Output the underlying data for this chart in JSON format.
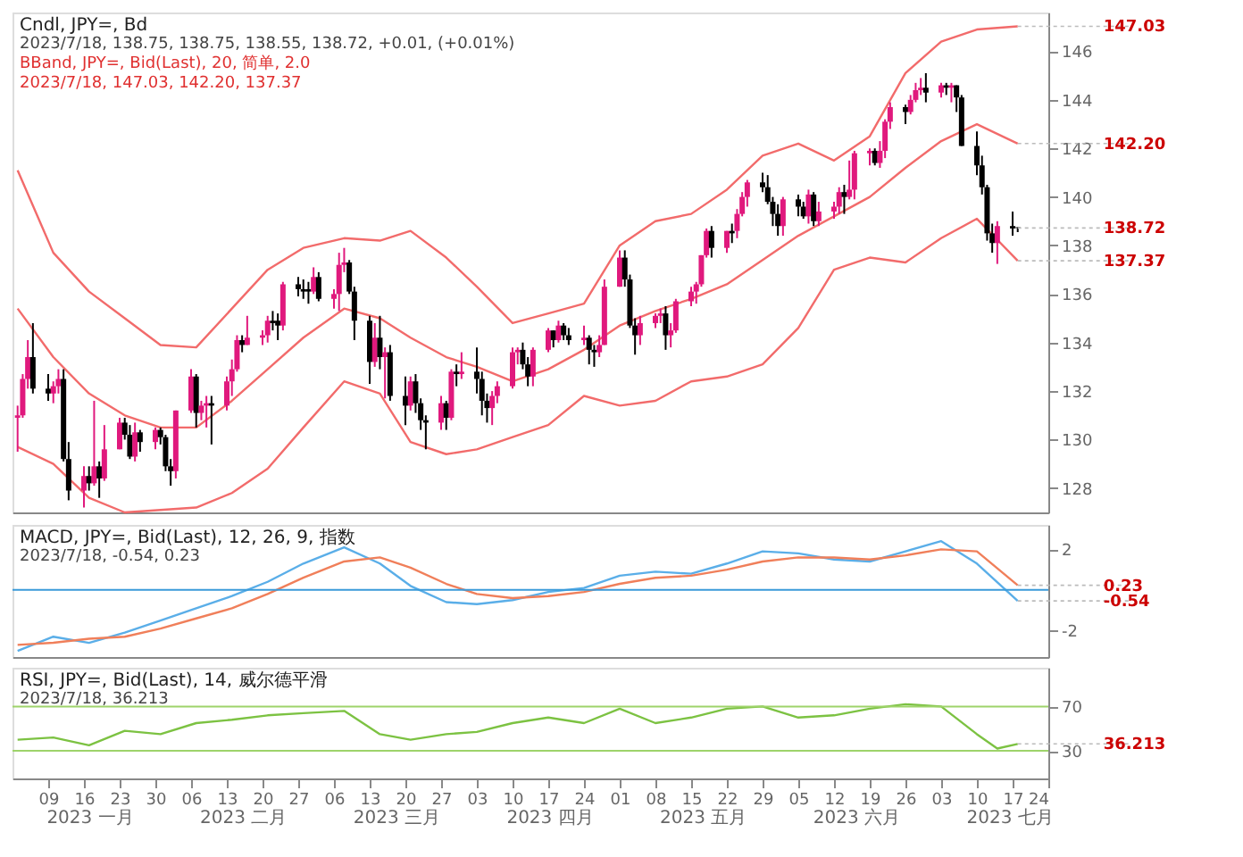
{
  "chart_data": [
    {
      "type": "candlestick",
      "title": "Cndl, JPY=, Bd",
      "subtitle": "2023/7/18, 138.75, 138.75, 138.55, 138.72, +0.01, (+0.01%)",
      "annotations": [
        "BBand, JPY=, Bid(Last), 20, 简单, 2.0",
        "2023/7/18, 147.03, 142.20, 137.37",
        {
          "text": "147.03",
          "x": "2023-07-18",
          "y": 147.03
        },
        {
          "text": "142.20",
          "x": "2023-07-18",
          "y": 142.2
        },
        {
          "text": "138.72",
          "x": "2023-07-18",
          "y": 138.72
        },
        {
          "text": "137.37",
          "x": "2023-07-18",
          "y": 137.37
        }
      ],
      "tick_labels": "y",
      "xlim": [
        "2023-01-02",
        "2023-07-24"
      ],
      "ylim": [
        127.0,
        147.6
      ],
      "yticks": [
        128,
        130,
        132,
        134,
        136,
        138,
        140,
        142,
        144,
        146
      ],
      "x": [
        "2023-01-03",
        "2023-01-04",
        "2023-01-05",
        "2023-01-06",
        "2023-01-09",
        "2023-01-10",
        "2023-01-11",
        "2023-01-12",
        "2023-01-13",
        "2023-01-16",
        "2023-01-17",
        "2023-01-18",
        "2023-01-19",
        "2023-01-20",
        "2023-01-23",
        "2023-01-24",
        "2023-01-25",
        "2023-01-26",
        "2023-01-27",
        "2023-01-30",
        "2023-01-31",
        "2023-02-01",
        "2023-02-02",
        "2023-02-03",
        "2023-02-06",
        "2023-02-07",
        "2023-02-08",
        "2023-02-09",
        "2023-02-10",
        "2023-02-13",
        "2023-02-14",
        "2023-02-15",
        "2023-02-16",
        "2023-02-17",
        "2023-02-20",
        "2023-02-21",
        "2023-02-22",
        "2023-02-23",
        "2023-02-24",
        "2023-02-27",
        "2023-02-28",
        "2023-03-01",
        "2023-03-02",
        "2023-03-03",
        "2023-03-06",
        "2023-03-07",
        "2023-03-08",
        "2023-03-09",
        "2023-03-10",
        "2023-03-13",
        "2023-03-14",
        "2023-03-15",
        "2023-03-16",
        "2023-03-17",
        "2023-03-20",
        "2023-03-21",
        "2023-03-22",
        "2023-03-23",
        "2023-03-24",
        "2023-03-27",
        "2023-03-28",
        "2023-03-29",
        "2023-03-30",
        "2023-03-31",
        "2023-04-03",
        "2023-04-04",
        "2023-04-05",
        "2023-04-06",
        "2023-04-07",
        "2023-04-10",
        "2023-04-11",
        "2023-04-12",
        "2023-04-13",
        "2023-04-14",
        "2023-04-17",
        "2023-04-18",
        "2023-04-19",
        "2023-04-20",
        "2023-04-21",
        "2023-04-24",
        "2023-04-25",
        "2023-04-26",
        "2023-04-27",
        "2023-04-28",
        "2023-05-01",
        "2023-05-02",
        "2023-05-03",
        "2023-05-04",
        "2023-05-05",
        "2023-05-08",
        "2023-05-09",
        "2023-05-10",
        "2023-05-11",
        "2023-05-12",
        "2023-05-15",
        "2023-05-16",
        "2023-05-17",
        "2023-05-18",
        "2023-05-19",
        "2023-05-22",
        "2023-05-23",
        "2023-05-24",
        "2023-05-25",
        "2023-05-26",
        "2023-05-29",
        "2023-05-30",
        "2023-05-31",
        "2023-06-01",
        "2023-06-02",
        "2023-06-05",
        "2023-06-06",
        "2023-06-07",
        "2023-06-08",
        "2023-06-09",
        "2023-06-12",
        "2023-06-13",
        "2023-06-14",
        "2023-06-15",
        "2023-06-16",
        "2023-06-19",
        "2023-06-20",
        "2023-06-21",
        "2023-06-22",
        "2023-06-23",
        "2023-06-26",
        "2023-06-27",
        "2023-06-28",
        "2023-06-29",
        "2023-06-30",
        "2023-07-03",
        "2023-07-04",
        "2023-07-05",
        "2023-07-06",
        "2023-07-07",
        "2023-07-10",
        "2023-07-11",
        "2023-07-12",
        "2023-07-13",
        "2023-07-14",
        "2023-07-17",
        "2023-07-18"
      ],
      "ohlc": [
        [
          130.9,
          131.4,
          129.5,
          131.0
        ],
        [
          131.0,
          132.7,
          130.9,
          132.5
        ],
        [
          132.5,
          134.1,
          132.1,
          133.4
        ],
        [
          133.4,
          134.8,
          131.9,
          132.1
        ],
        [
          132.1,
          132.7,
          131.6,
          131.9
        ],
        [
          131.9,
          132.4,
          131.5,
          132.2
        ],
        [
          132.2,
          132.9,
          131.9,
          132.5
        ],
        [
          132.5,
          132.9,
          129.1,
          129.2
        ],
        [
          129.2,
          129.9,
          127.5,
          127.9
        ],
        [
          127.9,
          128.9,
          127.2,
          128.5
        ],
        [
          128.5,
          128.9,
          127.9,
          128.2
        ],
        [
          128.2,
          131.6,
          128.1,
          128.9
        ],
        [
          128.9,
          129.1,
          127.6,
          128.4
        ],
        [
          128.4,
          130.6,
          128.3,
          129.6
        ],
        [
          129.6,
          130.9,
          129.6,
          130.7
        ],
        [
          130.7,
          130.9,
          130.0,
          130.2
        ],
        [
          130.2,
          130.6,
          129.2,
          129.3
        ],
        [
          129.3,
          130.7,
          129.1,
          130.3
        ],
        [
          130.3,
          130.4,
          129.5,
          129.9
        ],
        [
          129.9,
          130.5,
          129.6,
          130.4
        ],
        [
          130.4,
          130.5,
          129.8,
          130.1
        ],
        [
          130.1,
          130.2,
          128.7,
          128.9
        ],
        [
          128.9,
          129.2,
          128.1,
          128.7
        ],
        [
          128.7,
          131.2,
          128.4,
          131.2
        ],
        [
          131.2,
          132.9,
          131.1,
          132.6
        ],
        [
          132.6,
          132.7,
          130.5,
          131.1
        ],
        [
          131.1,
          131.6,
          130.8,
          131.4
        ],
        [
          131.4,
          131.8,
          130.5,
          131.5
        ],
        [
          131.5,
          131.8,
          129.8,
          131.4
        ],
        [
          131.4,
          132.6,
          131.2,
          132.4
        ],
        [
          132.4,
          133.3,
          131.8,
          132.9
        ],
        [
          132.9,
          134.3,
          132.8,
          134.1
        ],
        [
          134.1,
          134.3,
          133.6,
          133.9
        ],
        [
          133.9,
          135.1,
          133.9,
          134.2
        ],
        [
          134.2,
          134.5,
          133.9,
          134.3
        ],
        [
          134.3,
          135.1,
          134.0,
          134.9
        ],
        [
          134.9,
          135.3,
          134.5,
          134.8
        ],
        [
          134.9,
          135.2,
          134.1,
          134.7
        ],
        [
          134.7,
          136.5,
          134.5,
          136.4
        ],
        [
          136.4,
          136.7,
          135.9,
          136.2
        ],
        [
          136.2,
          136.6,
          135.8,
          136.1
        ],
        [
          136.2,
          136.5,
          135.6,
          136.1
        ],
        [
          136.1,
          137.1,
          136.0,
          136.7
        ],
        [
          136.7,
          136.9,
          135.7,
          135.8
        ],
        [
          135.8,
          136.2,
          135.4,
          136.0
        ],
        [
          136.0,
          137.7,
          135.3,
          137.2
        ],
        [
          137.2,
          137.9,
          136.9,
          137.3
        ],
        [
          137.3,
          137.4,
          136.0,
          136.1
        ],
        [
          136.1,
          136.3,
          134.1,
          134.9
        ],
        [
          134.9,
          135.1,
          132.3,
          133.2
        ],
        [
          133.2,
          134.8,
          133.0,
          134.2
        ],
        [
          134.2,
          135.1,
          132.9,
          133.4
        ],
        [
          133.4,
          133.8,
          131.7,
          133.6
        ],
        [
          133.6,
          133.9,
          131.6,
          131.8
        ],
        [
          131.8,
          132.6,
          130.6,
          131.4
        ],
        [
          131.4,
          132.6,
          131.2,
          132.4
        ],
        [
          132.4,
          132.7,
          131.1,
          131.5
        ],
        [
          131.5,
          131.7,
          130.4,
          130.8
        ],
        [
          130.8,
          131.0,
          129.6,
          130.7
        ],
        [
          130.7,
          131.8,
          130.4,
          131.5
        ],
        [
          131.5,
          131.6,
          130.4,
          130.9
        ],
        [
          130.9,
          132.9,
          130.8,
          132.8
        ],
        [
          132.8,
          133.1,
          132.2,
          132.7
        ],
        [
          132.7,
          133.6,
          132.5,
          132.8
        ],
        [
          132.8,
          133.8,
          131.9,
          132.5
        ],
        [
          132.5,
          132.8,
          131.0,
          131.6
        ],
        [
          131.6,
          131.9,
          130.7,
          131.3
        ],
        [
          131.3,
          132.0,
          130.6,
          131.8
        ],
        [
          131.8,
          132.4,
          131.5,
          132.2
        ],
        [
          132.2,
          133.8,
          132.1,
          133.6
        ],
        [
          133.6,
          133.8,
          133.1,
          133.7
        ],
        [
          133.7,
          134.0,
          132.9,
          133.1
        ],
        [
          133.1,
          133.4,
          132.2,
          132.6
        ],
        [
          132.6,
          133.8,
          132.2,
          133.7
        ],
        [
          133.7,
          134.6,
          133.6,
          134.5
        ],
        [
          134.5,
          134.5,
          133.8,
          134.1
        ],
        [
          134.1,
          134.9,
          134.0,
          134.7
        ],
        [
          134.7,
          134.8,
          134.1,
          134.3
        ],
        [
          134.3,
          134.6,
          133.9,
          134.1
        ],
        [
          134.1,
          134.7,
          133.9,
          134.2
        ],
        [
          134.2,
          134.3,
          133.1,
          133.7
        ],
        [
          133.7,
          133.9,
          133.0,
          133.6
        ],
        [
          133.6,
          134.3,
          133.4,
          133.9
        ],
        [
          133.9,
          136.6,
          133.9,
          136.3
        ],
        [
          136.3,
          137.8,
          136.3,
          137.5
        ],
        [
          137.5,
          137.8,
          136.3,
          136.6
        ],
        [
          136.6,
          136.8,
          134.6,
          134.7
        ],
        [
          134.7,
          135.0,
          133.5,
          134.3
        ],
        [
          134.3,
          135.1,
          133.9,
          134.8
        ],
        [
          134.8,
          135.2,
          134.6,
          135.1
        ],
        [
          135.1,
          135.4,
          134.8,
          135.2
        ],
        [
          135.2,
          135.5,
          133.7,
          134.3
        ],
        [
          134.3,
          134.8,
          133.8,
          134.5
        ],
        [
          134.5,
          135.8,
          134.4,
          135.7
        ],
        [
          135.7,
          136.3,
          135.5,
          136.1
        ],
        [
          136.1,
          136.5,
          135.6,
          136.4
        ],
        [
          136.4,
          137.6,
          136.3,
          137.6
        ],
        [
          137.6,
          138.7,
          137.5,
          138.6
        ],
        [
          138.6,
          138.8,
          137.5,
          137.9
        ],
        [
          137.9,
          138.6,
          137.7,
          138.6
        ],
        [
          138.6,
          138.9,
          138.1,
          138.5
        ],
        [
          138.6,
          139.5,
          138.3,
          139.3
        ],
        [
          139.3,
          140.2,
          139.2,
          140.0
        ],
        [
          140.0,
          140.7,
          139.6,
          140.6
        ],
        [
          140.6,
          141.0,
          140.2,
          140.4
        ],
        [
          140.4,
          140.9,
          139.7,
          139.8
        ],
        [
          139.8,
          140.0,
          138.8,
          139.3
        ],
        [
          139.3,
          139.7,
          138.4,
          138.8
        ],
        [
          138.8,
          140.0,
          138.4,
          139.9
        ],
        [
          139.9,
          140.1,
          139.2,
          139.6
        ],
        [
          139.6,
          139.8,
          139.1,
          139.2
        ],
        [
          139.2,
          140.3,
          138.9,
          140.1
        ],
        [
          140.1,
          140.2,
          138.8,
          139.0
        ],
        [
          139.0,
          139.8,
          138.8,
          139.4
        ],
        [
          139.4,
          139.8,
          139.1,
          139.6
        ],
        [
          139.6,
          140.4,
          139.3,
          140.2
        ],
        [
          140.2,
          140.5,
          139.3,
          140.0
        ],
        [
          140.0,
          141.5,
          139.9,
          140.3
        ],
        [
          140.3,
          141.9,
          139.9,
          141.8
        ],
        [
          141.8,
          142.0,
          141.3,
          141.9
        ],
        [
          141.9,
          142.0,
          141.3,
          141.4
        ],
        [
          141.4,
          142.3,
          141.2,
          141.9
        ],
        [
          141.9,
          143.2,
          141.6,
          143.1
        ],
        [
          143.1,
          143.9,
          142.8,
          143.7
        ],
        [
          143.7,
          143.8,
          143.0,
          143.5
        ],
        [
          143.5,
          144.2,
          143.4,
          144.0
        ],
        [
          144.0,
          144.7,
          143.9,
          144.4
        ],
        [
          144.4,
          144.9,
          144.2,
          144.5
        ],
        [
          144.5,
          145.1,
          143.9,
          144.3
        ],
        [
          144.3,
          144.7,
          144.1,
          144.6
        ],
        [
          144.6,
          144.7,
          144.2,
          144.5
        ],
        [
          144.5,
          144.7,
          143.9,
          144.6
        ],
        [
          144.6,
          144.6,
          143.5,
          144.1
        ],
        [
          144.1,
          144.2,
          142.1,
          142.1
        ],
        [
          142.1,
          142.7,
          140.9,
          141.3
        ],
        [
          141.3,
          141.7,
          140.1,
          140.4
        ],
        [
          140.4,
          140.5,
          138.2,
          138.5
        ],
        [
          138.5,
          138.9,
          137.7,
          138.1
        ],
        [
          138.1,
          139.0,
          137.24,
          138.8
        ],
        [
          138.8,
          139.4,
          138.4,
          138.7
        ],
        [
          138.75,
          138.75,
          138.55,
          138.72
        ]
      ],
      "colors": [
        "#e0197d",
        "#e0197d",
        "#e0197d",
        "#000000",
        "#000000",
        "#e0197d",
        "#e0197d",
        "#000000",
        "#000000",
        "#e0197d",
        "#000000",
        "#e0197d",
        "#000000",
        "#e0197d",
        "#e0197d",
        "#000000",
        "#000000",
        "#e0197d",
        "#000000",
        "#e0197d",
        "#000000",
        "#000000",
        "#000000",
        "#e0197d",
        "#e0197d",
        "#000000",
        "#e0197d",
        "#e0197d",
        "#000000",
        "#e0197d",
        "#e0197d",
        "#e0197d",
        "#000000",
        "#e0197d",
        "#e0197d",
        "#e0197d",
        "#000000",
        "#000000",
        "#e0197d",
        "#000000",
        "#000000",
        "#000000",
        "#e0197d",
        "#000000",
        "#e0197d",
        "#e0197d",
        "#e0197d",
        "#000000",
        "#000000",
        "#000000",
        "#e0197d",
        "#000000",
        "#e0197d",
        "#000000",
        "#000000",
        "#e0197d",
        "#000000",
        "#000000",
        "#000000",
        "#e0197d",
        "#000000",
        "#e0197d",
        "#000000",
        "#e0197d",
        "#000000",
        "#000000",
        "#000000",
        "#e0197d",
        "#e0197d",
        "#e0197d",
        "#e0197d",
        "#000000",
        "#000000",
        "#e0197d",
        "#e0197d",
        "#000000",
        "#e0197d",
        "#000000",
        "#000000",
        "#e0197d",
        "#000000",
        "#000000",
        "#e0197d",
        "#e0197d",
        "#e0197d",
        "#000000",
        "#000000",
        "#000000",
        "#e0197d",
        "#e0197d",
        "#e0197d",
        "#000000",
        "#e0197d",
        "#e0197d",
        "#e0197d",
        "#e0197d",
        "#e0197d",
        "#e0197d",
        "#000000",
        "#e0197d",
        "#000000",
        "#e0197d",
        "#e0197d",
        "#e0197d",
        "#000000",
        "#000000",
        "#000000",
        "#000000",
        "#e0197d",
        "#000000",
        "#000000",
        "#e0197d",
        "#000000",
        "#e0197d",
        "#e0197d",
        "#e0197d",
        "#000000",
        "#e0197d",
        "#e0197d",
        "#e0197d",
        "#000000",
        "#e0197d",
        "#e0197d",
        "#e0197d",
        "#000000",
        "#e0197d",
        "#e0197d",
        "#e0197d",
        "#000000",
        "#e0197d",
        "#000000",
        "#e0197d",
        "#000000",
        "#000000",
        "#000000",
        "#000000",
        "#000000",
        "#000000",
        "#e0197d",
        "#000000",
        "#000000"
      ],
      "series": [
        {
          "type": "line",
          "color": "#f26b6b",
          "x": [
            "2023-01-03",
            "2023-01-10",
            "2023-01-17",
            "2023-01-24",
            "2023-01-31",
            "2023-02-07",
            "2023-02-14",
            "2023-02-21",
            "2023-02-28",
            "2023-03-08",
            "2023-03-15",
            "2023-03-21",
            "2023-03-28",
            "2023-04-03",
            "2023-04-10",
            "2023-04-17",
            "2023-04-24",
            "2023-05-01",
            "2023-05-08",
            "2023-05-15",
            "2023-05-22",
            "2023-05-29",
            "2023-06-05",
            "2023-06-12",
            "2023-06-19",
            "2023-06-26",
            "2023-07-03",
            "2023-07-10",
            "2023-07-18"
          ],
          "values": [
            141.1,
            137.7,
            136.1,
            135.0,
            133.9,
            133.8,
            135.4,
            137.0,
            137.9,
            138.3,
            138.2,
            138.6,
            137.5,
            136.3,
            134.8,
            135.2,
            135.6,
            138.0,
            139.0,
            139.3,
            140.3,
            141.7,
            142.2,
            141.5,
            142.5,
            145.1,
            146.4,
            146.9,
            147.03
          ]
        },
        {
          "type": "line",
          "color": "#f26b6b",
          "x": [
            "2023-01-03",
            "2023-01-10",
            "2023-01-17",
            "2023-01-24",
            "2023-01-31",
            "2023-02-07",
            "2023-02-14",
            "2023-02-21",
            "2023-02-28",
            "2023-03-08",
            "2023-03-15",
            "2023-03-21",
            "2023-03-28",
            "2023-04-03",
            "2023-04-10",
            "2023-04-17",
            "2023-04-24",
            "2023-05-01",
            "2023-05-08",
            "2023-05-15",
            "2023-05-22",
            "2023-05-29",
            "2023-06-05",
            "2023-06-12",
            "2023-06-19",
            "2023-06-26",
            "2023-07-03",
            "2023-07-10",
            "2023-07-18"
          ],
          "values": [
            135.4,
            133.4,
            131.9,
            131.0,
            130.5,
            130.5,
            131.6,
            132.9,
            134.2,
            135.4,
            135.0,
            134.2,
            133.4,
            133.0,
            132.4,
            132.9,
            133.7,
            134.7,
            135.3,
            135.8,
            136.4,
            137.4,
            138.4,
            139.2,
            140.0,
            141.2,
            142.3,
            143.0,
            142.2
          ]
        },
        {
          "type": "line",
          "color": "#f26b6b",
          "x": [
            "2023-01-03",
            "2023-01-10",
            "2023-01-17",
            "2023-01-24",
            "2023-01-31",
            "2023-02-07",
            "2023-02-14",
            "2023-02-21",
            "2023-02-28",
            "2023-03-08",
            "2023-03-15",
            "2023-03-21",
            "2023-03-28",
            "2023-04-03",
            "2023-04-10",
            "2023-04-17",
            "2023-04-24",
            "2023-05-01",
            "2023-05-08",
            "2023-05-15",
            "2023-05-22",
            "2023-05-29",
            "2023-06-05",
            "2023-06-12",
            "2023-06-19",
            "2023-06-26",
            "2023-07-03",
            "2023-07-10",
            "2023-07-18"
          ],
          "values": [
            129.7,
            129.0,
            127.6,
            127.0,
            127.1,
            127.2,
            127.8,
            128.8,
            130.5,
            132.4,
            131.9,
            129.9,
            129.4,
            129.6,
            130.1,
            130.6,
            131.8,
            131.4,
            131.6,
            132.4,
            132.6,
            133.1,
            134.6,
            137.0,
            137.5,
            137.3,
            138.3,
            139.1,
            137.37
          ]
        }
      ]
    },
    {
      "type": "line",
      "title": "MACD, JPY=, Bid(Last), 12, 26, 9, 指数",
      "subtitle": "2023/7/18, -0.54, 0.23",
      "annotations": [
        {
          "text": "0.23",
          "x": "2023-07-18",
          "y": 0.23
        },
        {
          "text": "-0.54",
          "x": "2023-07-18",
          "y": -0.54
        }
      ],
      "tick_labels": "y",
      "xlim": [
        "2023-01-02",
        "2023-07-24"
      ],
      "ylim": [
        -3.3,
        3.2
      ],
      "yticks": [
        -2,
        2
      ],
      "ref_lines": [
        {
          "axis": "y",
          "value": 0,
          "color": "#3a9ad9"
        }
      ],
      "x": [
        "2023-01-03",
        "2023-01-10",
        "2023-01-17",
        "2023-01-24",
        "2023-01-31",
        "2023-02-07",
        "2023-02-14",
        "2023-02-21",
        "2023-02-28",
        "2023-03-08",
        "2023-03-15",
        "2023-03-21",
        "2023-03-28",
        "2023-04-03",
        "2023-04-10",
        "2023-04-17",
        "2023-04-24",
        "2023-05-01",
        "2023-05-08",
        "2023-05-15",
        "2023-05-22",
        "2023-05-29",
        "2023-06-05",
        "2023-06-12",
        "2023-06-19",
        "2023-06-26",
        "2023-07-03",
        "2023-07-10",
        "2023-07-18"
      ],
      "series": [
        {
          "color": "#5aaee8",
          "values": [
            -3.0,
            -2.3,
            -2.6,
            -2.1,
            -1.5,
            -0.9,
            -0.3,
            0.4,
            1.3,
            2.1,
            1.3,
            0.2,
            -0.6,
            -0.7,
            -0.5,
            -0.1,
            0.1,
            0.7,
            0.9,
            0.8,
            1.3,
            1.9,
            1.8,
            1.5,
            1.4,
            1.9,
            2.4,
            1.3,
            -0.54
          ]
        },
        {
          "color": "#f07f5a",
          "values": [
            -2.7,
            -2.6,
            -2.4,
            -2.3,
            -1.9,
            -1.4,
            -0.9,
            -0.2,
            0.6,
            1.4,
            1.6,
            1.1,
            0.3,
            -0.2,
            -0.4,
            -0.3,
            -0.1,
            0.3,
            0.6,
            0.7,
            1.0,
            1.4,
            1.6,
            1.6,
            1.5,
            1.7,
            2.0,
            1.9,
            0.23
          ]
        }
      ]
    },
    {
      "type": "line",
      "title": "RSI, JPY=, Bid(Last), 14, 威尔德平滑",
      "subtitle": "2023/7/18, 36.213",
      "annotations": [
        {
          "text": "36.213",
          "x": "2023-07-18",
          "y": 36.213
        },
        "2023 一月",
        "2023 二月",
        "2023 三月",
        "2023 四月",
        "2023 五月",
        "2023 六月",
        "2023 七月"
      ],
      "xlim": [
        "2023-01-02",
        "2023-07-24"
      ],
      "xticks": [
        {
          "value": "2023-01-09",
          "label": "09"
        },
        {
          "value": "2023-01-16",
          "label": "16"
        },
        {
          "value": "2023-01-23",
          "label": "23"
        },
        {
          "value": "2023-01-30",
          "label": "30"
        },
        {
          "value": "2023-02-06",
          "label": "06"
        },
        {
          "value": "2023-02-13",
          "label": "13"
        },
        {
          "value": "2023-02-20",
          "label": "20"
        },
        {
          "value": "2023-02-27",
          "label": "27"
        },
        {
          "value": "2023-03-06",
          "label": "06"
        },
        {
          "value": "2023-03-13",
          "label": "13"
        },
        {
          "value": "2023-03-20",
          "label": "20"
        },
        {
          "value": "2023-03-27",
          "label": "27"
        },
        {
          "value": "2023-04-03",
          "label": "03"
        },
        {
          "value": "2023-04-10",
          "label": "10"
        },
        {
          "value": "2023-04-17",
          "label": "17"
        },
        {
          "value": "2023-04-24",
          "label": "24"
        },
        {
          "value": "2023-05-01",
          "label": "01"
        },
        {
          "value": "2023-05-08",
          "label": "08"
        },
        {
          "value": "2023-05-15",
          "label": "15"
        },
        {
          "value": "2023-05-22",
          "label": "22"
        },
        {
          "value": "2023-05-29",
          "label": "29"
        },
        {
          "value": "2023-06-05",
          "label": "05"
        },
        {
          "value": "2023-06-12",
          "label": "12"
        },
        {
          "value": "2023-06-19",
          "label": "19"
        },
        {
          "value": "2023-06-26",
          "label": "26"
        },
        {
          "value": "2023-07-03",
          "label": "03"
        },
        {
          "value": "2023-07-10",
          "label": "10"
        },
        {
          "value": "2023-07-17",
          "label": "17"
        },
        {
          "value": "2023-07-24",
          "label": "24"
        }
      ],
      "ylim": [
        5,
        105
      ],
      "yticks": [
        30,
        70
      ],
      "ref_lines": [
        {
          "axis": "y",
          "value": 70,
          "color": "#9ed36a"
        },
        {
          "axis": "y",
          "value": 30,
          "color": "#9ed36a"
        }
      ],
      "x": [
        "2023-01-03",
        "2023-01-10",
        "2023-01-17",
        "2023-01-24",
        "2023-01-31",
        "2023-02-07",
        "2023-02-14",
        "2023-02-21",
        "2023-02-28",
        "2023-03-08",
        "2023-03-15",
        "2023-03-21",
        "2023-03-28",
        "2023-04-03",
        "2023-04-10",
        "2023-04-17",
        "2023-04-24",
        "2023-05-01",
        "2023-05-08",
        "2023-05-15",
        "2023-05-22",
        "2023-05-29",
        "2023-06-05",
        "2023-06-12",
        "2023-06-19",
        "2023-06-26",
        "2023-07-03",
        "2023-07-10",
        "2023-07-14",
        "2023-07-18"
      ],
      "series": [
        {
          "color": "#7cc242",
          "values": [
            40,
            42,
            35,
            48,
            45,
            55,
            58,
            62,
            64,
            66,
            45,
            40,
            45,
            47,
            55,
            60,
            55,
            68,
            55,
            60,
            68,
            70,
            60,
            62,
            68,
            72,
            70,
            45,
            32,
            36.213
          ]
        }
      ]
    }
  ]
}
